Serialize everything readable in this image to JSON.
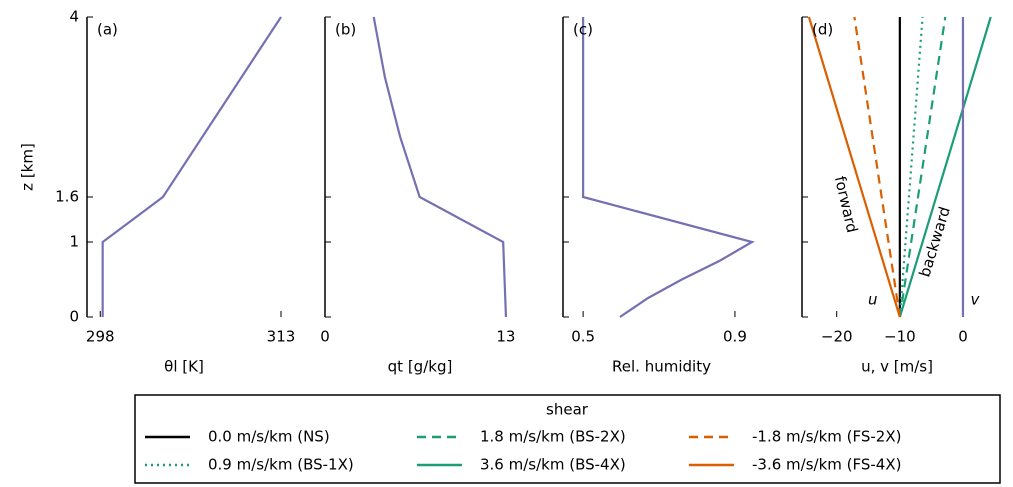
{
  "chart_data": [
    {
      "type": "line",
      "label": "(a)",
      "ylabel": "z [km]",
      "xlabel": "θl [K]",
      "xlim": [
        296.9,
        313
      ],
      "xticks": [
        298,
        313
      ],
      "ylim": [
        0,
        4
      ],
      "yticks": [
        0,
        1,
        1.6,
        4
      ],
      "series": [
        {
          "color": "#7570b3",
          "x": [
            298.2,
            298.2,
            303.2,
            313
          ],
          "y": [
            0,
            1,
            1.6,
            4
          ]
        }
      ]
    },
    {
      "type": "line",
      "label": "(b)",
      "xlabel": "qt [g/kg]",
      "xlim": [
        0,
        13.65
      ],
      "xticks": [
        0,
        13
      ],
      "ylim": [
        0,
        4
      ],
      "yticks": [
        0,
        1,
        1.6,
        4
      ],
      "series": [
        {
          "color": "#7570b3",
          "x": [
            13,
            12.8,
            6.8,
            5.4,
            4.3,
            3.5
          ],
          "y": [
            0,
            1,
            1.6,
            2.4,
            3.2,
            4
          ]
        }
      ]
    },
    {
      "type": "line",
      "label": "(c)",
      "xlabel": "Rel. humidity",
      "xlim": [
        0.447,
        0.966
      ],
      "xticks": [
        0.5,
        0.9
      ],
      "ylim": [
        0,
        4
      ],
      "yticks": [
        0,
        1,
        1.6,
        4
      ],
      "series": [
        {
          "color": "#7570b3",
          "x": [
            0.597,
            0.67,
            0.76,
            0.86,
            0.945,
            0.5,
            0.5
          ],
          "y": [
            0,
            0.25,
            0.5,
            0.75,
            1,
            1.6,
            4
          ]
        }
      ]
    },
    {
      "type": "line",
      "label": "(d)",
      "xlabel": "u, v [m/s]",
      "xlim": [
        -25.5,
        4.6
      ],
      "xticks": [
        {
          "value": -20,
          "label": "−20"
        },
        {
          "value": -10,
          "label": "−10"
        },
        0
      ],
      "ylim": [
        0,
        4
      ],
      "yticks": [
        0,
        1,
        1.6,
        4
      ],
      "series": [
        {
          "name": "0.0 m/s/km (NS)",
          "color": "#000000",
          "dash": "solid",
          "x": [
            -10,
            -10
          ],
          "y": [
            0,
            4
          ]
        },
        {
          "name": "0.9 m/s/km (BS-1X)",
          "color": "#1b9e77",
          "dash": "dotted",
          "x": [
            -10,
            -6.4
          ],
          "y": [
            0,
            4
          ]
        },
        {
          "name": "1.8 m/s/km (BS-2X)",
          "color": "#1b9e77",
          "dash": "dashed",
          "x": [
            -10,
            -2.8
          ],
          "y": [
            0,
            4
          ]
        },
        {
          "name": "3.6 m/s/km (BS-4X)",
          "color": "#1b9e77",
          "dash": "solid",
          "x": [
            -10,
            4.4
          ],
          "y": [
            0,
            4
          ]
        },
        {
          "name": "-1.8 m/s/km (FS-2X)",
          "color": "#d95f02",
          "dash": "dashed",
          "x": [
            -10,
            -17.2
          ],
          "y": [
            0,
            4
          ]
        },
        {
          "name": "-3.6 m/s/km (FS-4X)",
          "color": "#d95f02",
          "dash": "solid",
          "x": [
            -10,
            -24.4
          ],
          "y": [
            0,
            4
          ]
        },
        {
          "color": "#7570b3",
          "dash": "solid",
          "x": [
            0,
            0
          ],
          "y": [
            0,
            4
          ]
        }
      ],
      "annotations": [
        {
          "text": "u",
          "color": "#000000"
        },
        {
          "text": "v",
          "color": "#7570b3"
        },
        {
          "text": "forward",
          "color": "#d95f02"
        },
        {
          "text": "backward",
          "color": "#1b9e77"
        }
      ]
    }
  ],
  "legend": {
    "title": "shear"
  }
}
